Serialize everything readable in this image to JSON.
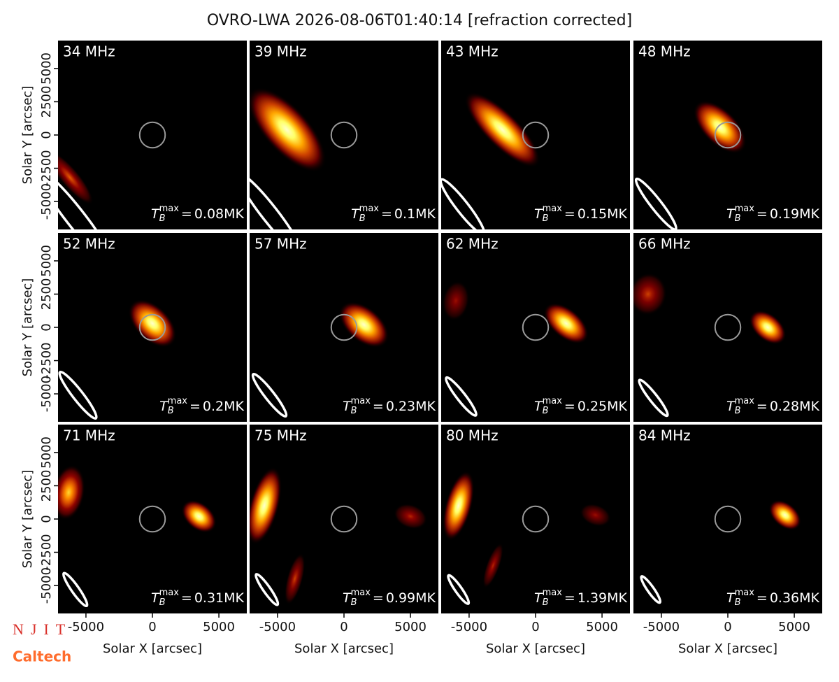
{
  "title": "OVRO-LWA 2026-08-06T01:40:14 [refraction corrected]",
  "logos": {
    "njit": "NJIT",
    "caltech": "Caltech"
  },
  "tb_label": {
    "base": "T",
    "sub": "B",
    "sup": "max",
    "relation": "="
  },
  "solar_disk_radius": 960,
  "chart_data": [
    {
      "type": "image",
      "title": "34 MHz",
      "annotation": "0.08MK",
      "xlim": [
        -7100,
        7100
      ],
      "ylim": [
        -7100,
        7100
      ],
      "yticks": [
        -5000,
        -2500,
        0,
        2500,
        5000
      ],
      "y_label": "Solar Y [arcsec]",
      "beam": {
        "x": -5800,
        "y": -6200,
        "major": 4500,
        "minor": 700,
        "angle": -52
      },
      "sources": [
        {
          "x": -6200,
          "y": -3200,
          "major": 2600,
          "minor": 700,
          "angle": -50,
          "intensity": 0.45
        }
      ]
    },
    {
      "type": "image",
      "title": "39 MHz",
      "annotation": "0.1MK",
      "xlim": [
        -7100,
        7100
      ],
      "ylim": [
        -7100,
        7100
      ],
      "beam": {
        "x": -5600,
        "y": -5900,
        "major": 3800,
        "minor": 600,
        "angle": -52
      },
      "sources": [
        {
          "x": -4300,
          "y": 400,
          "major": 4000,
          "minor": 1700,
          "angle": -48,
          "intensity": 1
        }
      ]
    },
    {
      "type": "image",
      "title": "43 MHz",
      "annotation": "0.15MK",
      "xlim": [
        -7100,
        7100
      ],
      "ylim": [
        -7100,
        7100
      ],
      "beam": {
        "x": -5500,
        "y": -5400,
        "major": 2600,
        "minor": 450,
        "angle": -52
      },
      "sources": [
        {
          "x": -2500,
          "y": 400,
          "major": 3800,
          "minor": 1300,
          "angle": -45,
          "intensity": 1
        }
      ]
    },
    {
      "type": "image",
      "title": "48 MHz",
      "annotation": "0.19MK",
      "xlim": [
        -7100,
        7100
      ],
      "ylim": [
        -7100,
        7100
      ],
      "beam": {
        "x": -5400,
        "y": -5200,
        "major": 2400,
        "minor": 400,
        "angle": -52
      },
      "sources": [
        {
          "x": -600,
          "y": 600,
          "major": 2500,
          "minor": 1300,
          "angle": -45,
          "intensity": 1
        }
      ]
    },
    {
      "type": "image",
      "title": "52 MHz",
      "annotation": "0.2MK",
      "xlim": [
        -7100,
        7100
      ],
      "ylim": [
        -7100,
        7100
      ],
      "yticks": [
        -5000,
        -2500,
        0,
        2500,
        5000
      ],
      "y_label": "Solar Y [arcsec]",
      "beam": {
        "x": -5600,
        "y": -5100,
        "major": 2200,
        "minor": 380,
        "angle": -52
      },
      "sources": [
        {
          "x": 0,
          "y": 300,
          "major": 2200,
          "minor": 1300,
          "angle": -45,
          "intensity": 1
        }
      ]
    },
    {
      "type": "image",
      "title": "57 MHz",
      "annotation": "0.23MK",
      "xlim": [
        -7100,
        7100
      ],
      "ylim": [
        -7100,
        7100
      ],
      "beam": {
        "x": -5600,
        "y": -5100,
        "major": 2000,
        "minor": 350,
        "angle": -52
      },
      "sources": [
        {
          "x": 1500,
          "y": 200,
          "major": 2200,
          "minor": 1300,
          "angle": -40,
          "intensity": 1
        }
      ]
    },
    {
      "type": "image",
      "title": "62 MHz",
      "annotation": "0.25MK",
      "xlim": [
        -7100,
        7100
      ],
      "ylim": [
        -7100,
        7100
      ],
      "beam": {
        "x": -5600,
        "y": -5200,
        "major": 1800,
        "minor": 320,
        "angle": -52
      },
      "sources": [
        {
          "x": 2300,
          "y": 300,
          "major": 2000,
          "minor": 1100,
          "angle": -40,
          "intensity": 1
        },
        {
          "x": -6000,
          "y": 2000,
          "major": 1500,
          "minor": 1000,
          "angle": 80,
          "intensity": 0.3
        }
      ]
    },
    {
      "type": "image",
      "title": "66 MHz",
      "annotation": "0.28MK",
      "xlim": [
        -7100,
        7100
      ],
      "ylim": [
        -7100,
        7100
      ],
      "beam": {
        "x": -5600,
        "y": -5300,
        "major": 1700,
        "minor": 300,
        "angle": -52
      },
      "sources": [
        {
          "x": 3000,
          "y": 0,
          "major": 1600,
          "minor": 1000,
          "angle": -40,
          "intensity": 1
        },
        {
          "x": -6000,
          "y": 2500,
          "major": 1600,
          "minor": 1400,
          "angle": 80,
          "intensity": 0.4
        }
      ]
    },
    {
      "type": "image",
      "title": "71 MHz",
      "annotation": "0.31MK",
      "xlim": [
        -7100,
        7100
      ],
      "ylim": [
        -7100,
        7100
      ],
      "yticks": [
        -5000,
        -2500,
        0,
        2500,
        5000
      ],
      "y_label": "Solar Y [arcsec]",
      "xticks": [
        -5000,
        0,
        5000
      ],
      "x_label": "Solar X [arcsec]",
      "beam": {
        "x": -5800,
        "y": -5300,
        "major": 1500,
        "minor": 280,
        "angle": -55
      },
      "sources": [
        {
          "x": 3500,
          "y": 200,
          "major": 1500,
          "minor": 1000,
          "angle": -40,
          "intensity": 1
        },
        {
          "x": -6300,
          "y": 2000,
          "major": 2100,
          "minor": 1200,
          "angle": 80,
          "intensity": 0.7
        }
      ]
    },
    {
      "type": "image",
      "title": "75 MHz",
      "annotation": "0.99MK",
      "xlim": [
        -7100,
        7100
      ],
      "ylim": [
        -7100,
        7100
      ],
      "xticks": [
        -5000,
        0,
        5000
      ],
      "x_label": "Solar X [arcsec]",
      "beam": {
        "x": -5800,
        "y": -5300,
        "major": 1400,
        "minor": 260,
        "angle": -55
      },
      "sources": [
        {
          "x": -6000,
          "y": 1000,
          "major": 3000,
          "minor": 1100,
          "angle": 75,
          "intensity": 1
        },
        {
          "x": 5000,
          "y": 200,
          "major": 1300,
          "minor": 900,
          "angle": -20,
          "intensity": 0.35
        },
        {
          "x": -3700,
          "y": -4500,
          "major": 2000,
          "minor": 600,
          "angle": 75,
          "intensity": 0.4
        }
      ]
    },
    {
      "type": "image",
      "title": "80 MHz",
      "annotation": "1.39MK",
      "xlim": [
        -7100,
        7100
      ],
      "ylim": [
        -7100,
        7100
      ],
      "xticks": [
        -5000,
        0,
        5000
      ],
      "x_label": "Solar X [arcsec]",
      "beam": {
        "x": -5800,
        "y": -5300,
        "major": 1300,
        "minor": 250,
        "angle": -55
      },
      "sources": [
        {
          "x": -5800,
          "y": 1000,
          "major": 2700,
          "minor": 1000,
          "angle": 75,
          "intensity": 1
        },
        {
          "x": 4500,
          "y": 300,
          "major": 1200,
          "minor": 800,
          "angle": -20,
          "intensity": 0.3
        },
        {
          "x": -3200,
          "y": -3500,
          "major": 1800,
          "minor": 500,
          "angle": 70,
          "intensity": 0.35
        }
      ]
    },
    {
      "type": "image",
      "title": "84 MHz",
      "annotation": "0.36MK",
      "xlim": [
        -7100,
        7100
      ],
      "ylim": [
        -7100,
        7100
      ],
      "xticks": [
        -5000,
        0,
        5000
      ],
      "x_label": "Solar X [arcsec]",
      "beam": {
        "x": -5800,
        "y": -5300,
        "major": 1200,
        "minor": 240,
        "angle": -55
      },
      "sources": [
        {
          "x": 4300,
          "y": 300,
          "major": 1400,
          "minor": 900,
          "angle": -40,
          "intensity": 1
        }
      ]
    }
  ]
}
